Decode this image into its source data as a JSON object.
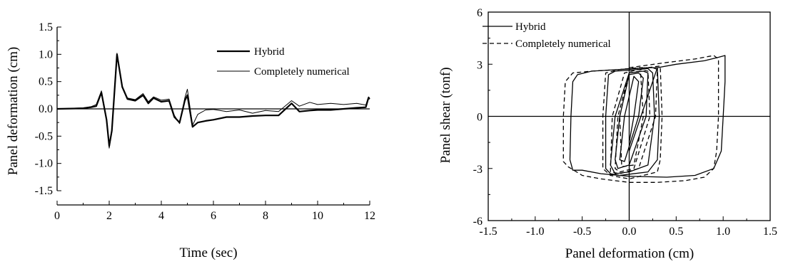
{
  "chart_data": [
    {
      "type": "line",
      "xlabel": "Time (sec)",
      "ylabel": "Panel deformation (cm)",
      "xlim": [
        0,
        12
      ],
      "ylim": [
        -1.5,
        1.5
      ],
      "xticks": [
        "0",
        "2",
        "4",
        "6",
        "8",
        "10",
        "12"
      ],
      "yticks": [
        "1.5",
        "1.0",
        "0.5",
        "0.0",
        "-0.5",
        "-1.0",
        "-1.5"
      ],
      "zero_line": true,
      "legend": "top-right",
      "series": [
        {
          "name": "Hybrid",
          "style": "thick",
          "x": [
            0,
            1.0,
            1.3,
            1.5,
            1.7,
            1.9,
            2.0,
            2.1,
            2.3,
            2.5,
            2.7,
            3.0,
            3.3,
            3.5,
            3.7,
            4.0,
            4.3,
            4.5,
            4.7,
            4.9,
            5.0,
            5.2,
            5.4,
            5.7,
            6.0,
            6.5,
            7.0,
            7.5,
            8.0,
            8.5,
            9.0,
            9.3,
            9.7,
            10.0,
            10.5,
            11.0,
            11.5,
            11.85,
            11.95,
            12.0
          ],
          "y": [
            0.0,
            0.01,
            0.03,
            0.05,
            0.3,
            -0.2,
            -0.68,
            -0.4,
            1.0,
            0.4,
            0.18,
            0.15,
            0.25,
            0.1,
            0.2,
            0.13,
            0.15,
            -0.15,
            -0.25,
            0.15,
            0.25,
            -0.33,
            -0.25,
            -0.22,
            -0.2,
            -0.15,
            -0.15,
            -0.13,
            -0.12,
            -0.12,
            0.1,
            -0.05,
            -0.03,
            -0.02,
            -0.02,
            0.0,
            0.02,
            0.03,
            0.2,
            0.18
          ]
        },
        {
          "name": "Completely numerical",
          "style": "thin",
          "x": [
            0,
            1.0,
            1.3,
            1.5,
            1.7,
            1.9,
            2.0,
            2.1,
            2.3,
            2.5,
            2.7,
            3.0,
            3.3,
            3.5,
            3.7,
            4.0,
            4.3,
            4.5,
            4.7,
            4.9,
            5.0,
            5.2,
            5.4,
            5.7,
            6.0,
            6.5,
            7.0,
            7.5,
            8.0,
            8.5,
            9.0,
            9.3,
            9.7,
            10.0,
            10.5,
            11.0,
            11.5,
            11.85,
            11.95,
            12.0
          ],
          "y": [
            0.0,
            0.02,
            0.04,
            0.08,
            0.33,
            -0.22,
            -0.72,
            -0.42,
            1.02,
            0.42,
            0.2,
            0.17,
            0.28,
            0.13,
            0.22,
            0.16,
            0.18,
            -0.12,
            -0.27,
            0.2,
            0.36,
            -0.3,
            -0.1,
            -0.02,
            -0.01,
            -0.05,
            -0.02,
            -0.08,
            -0.03,
            -0.05,
            0.15,
            0.05,
            0.12,
            0.08,
            0.1,
            0.08,
            0.1,
            0.07,
            0.22,
            0.2
          ]
        }
      ]
    },
    {
      "type": "line",
      "xlabel": "Panel deformation (cm)",
      "ylabel": "Panel shear (tonf)",
      "xlim": [
        -1.5,
        1.5
      ],
      "ylim": [
        -6,
        6
      ],
      "xticks": [
        "-1.5",
        "-1.0",
        "-0.5",
        "0.0",
        "0.5",
        "1.0",
        "1.5"
      ],
      "yticks": [
        "6",
        "3",
        "0",
        "-3",
        "-6"
      ],
      "zero_line": true,
      "legend": "top-left",
      "series": [
        {
          "name": "Hybrid",
          "style": "solid",
          "x": [
            0.0,
            0.3,
            0.5,
            0.8,
            0.95,
            1.02,
            1.02,
            1.0,
            0.98,
            0.9,
            0.7,
            0.4,
            0.0,
            -0.3,
            -0.5,
            -0.6,
            -0.63,
            -0.62,
            -0.6,
            -0.55,
            -0.4,
            -0.1,
            0.2,
            0.3,
            0.32,
            0.3,
            0.2,
            -0.1,
            -0.2,
            -0.25,
            -0.25,
            -0.22,
            -0.15,
            0.1,
            0.2,
            0.25,
            0.27,
            0.2,
            0.0,
            -0.15,
            -0.2,
            -0.15,
            0.0,
            0.15,
            0.2,
            0.18,
            0.0,
            -0.12,
            -0.15,
            -0.1,
            0.0,
            0.1,
            0.15,
            0.1,
            -0.05,
            -0.1,
            -0.05,
            0.05,
            0.1,
            0.05,
            0.0
          ],
          "y": [
            -2.0,
            2.8,
            3.0,
            3.2,
            3.4,
            3.5,
            2.0,
            0.0,
            -2.0,
            -3.0,
            -3.4,
            -3.5,
            -3.45,
            -3.3,
            -3.1,
            -3.1,
            -2.5,
            0.0,
            2.0,
            2.4,
            2.6,
            2.7,
            2.8,
            2.8,
            0.0,
            -2.5,
            -3.2,
            -3.4,
            -3.3,
            -3.0,
            0.0,
            2.4,
            2.6,
            2.7,
            2.75,
            2.5,
            0.0,
            -2.8,
            -3.2,
            -3.3,
            -2.8,
            0.0,
            2.5,
            2.6,
            2.5,
            0.0,
            -2.8,
            -3.0,
            -2.5,
            0.0,
            2.4,
            2.5,
            2.2,
            0.0,
            -2.6,
            -2.5,
            0.0,
            2.3,
            2.0,
            0.0,
            -1.5
          ]
        },
        {
          "name": "Completely numerical",
          "style": "dashed",
          "x": [
            0.0,
            0.4,
            0.7,
            0.9,
            0.95,
            0.95,
            0.93,
            0.9,
            0.8,
            0.6,
            0.3,
            0.0,
            -0.3,
            -0.5,
            -0.65,
            -0.7,
            -0.7,
            -0.68,
            -0.6,
            -0.4,
            -0.1,
            0.2,
            0.33,
            0.35,
            0.33,
            0.3,
            0.0,
            -0.2,
            -0.28,
            -0.28,
            -0.25,
            -0.1,
            0.1,
            0.25,
            0.3,
            0.28,
            0.1,
            -0.1,
            -0.2,
            -0.18,
            -0.05,
            0.1,
            0.2,
            0.22,
            0.05,
            -0.1,
            -0.15,
            -0.12,
            0.0,
            0.12,
            0.15,
            0.05,
            -0.08,
            -0.1,
            0.0
          ],
          "y": [
            2.8,
            3.1,
            3.3,
            3.5,
            3.3,
            0.0,
            -2.0,
            -3.0,
            -3.5,
            -3.7,
            -3.8,
            -3.8,
            -3.6,
            -3.4,
            -2.9,
            -2.6,
            0.0,
            2.0,
            2.5,
            2.6,
            2.7,
            2.8,
            2.9,
            0.0,
            -2.5,
            -3.2,
            -3.6,
            -3.4,
            -3.0,
            0.0,
            2.5,
            2.7,
            2.8,
            2.8,
            2.7,
            0.0,
            -3.0,
            -3.3,
            -3.2,
            0.0,
            2.5,
            2.7,
            2.6,
            0.0,
            -3.0,
            -3.2,
            -3.0,
            0.0,
            2.5,
            2.6,
            0.0,
            -2.8,
            -2.9,
            0.0,
            2.4
          ]
        }
      ]
    }
  ]
}
